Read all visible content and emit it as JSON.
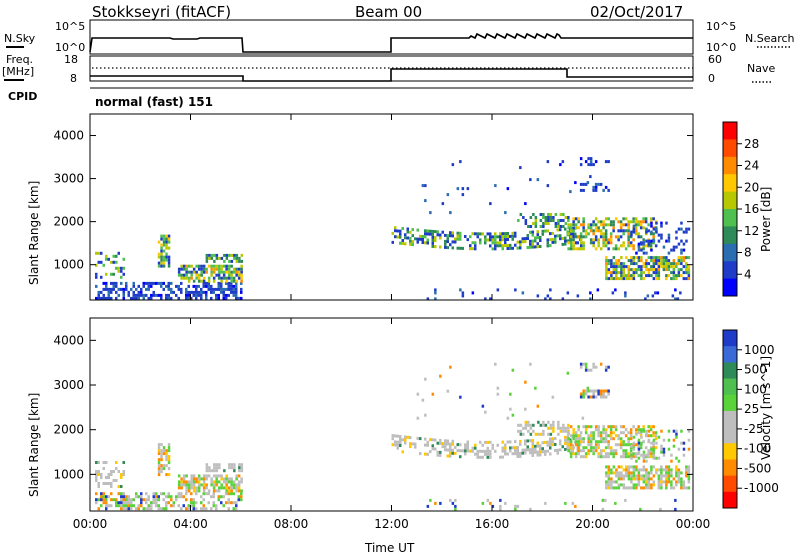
{
  "header": {
    "station": "Stokkseyri (fitACF)",
    "beam": "Beam 00",
    "date": "02/Oct/2017"
  },
  "panels": {
    "nsky_label": "N.Sky",
    "nsearch_label": "N.Search",
    "nsky_ticks": [
      "10^5",
      "10^0"
    ],
    "nsearch_ticks": [
      "10^5",
      "10^0"
    ],
    "freq_label_1": "Freq.",
    "freq_label_2": "[MHz]",
    "freq_ticks": [
      "18",
      "8"
    ],
    "nave_ticks": [
      "60",
      "0"
    ],
    "nave_label": "Nave",
    "cpid_label": "CPID",
    "cpid_text": "normal (fast) 151"
  },
  "chart_data": [
    {
      "type": "heatmap",
      "name": "power-plot",
      "ylabel": "Slant Range [km]",
      "yticks": [
        "4000",
        "3000",
        "2000",
        "1000"
      ],
      "ytick_values": [
        4000,
        3000,
        2000,
        1000
      ],
      "ylim": [
        180,
        4500
      ],
      "xlim": [
        0,
        24
      ],
      "colorbar_label": "Power [dB]",
      "colorbar_ticks": [
        "28",
        "24",
        "20",
        "16",
        "12",
        "8",
        "4"
      ],
      "colorbar_colors": [
        "#ff0000",
        "#ff4a00",
        "#ff8c00",
        "#ffc800",
        "#b8c800",
        "#4fbf4f",
        "#2e8b57",
        "#2a6db0",
        "#1e3cc8",
        "#0000ff"
      ]
    },
    {
      "type": "heatmap",
      "name": "velocity-plot",
      "ylabel": "Slant Range [km]",
      "yticks": [
        "4000",
        "3000",
        "2000",
        "1000"
      ],
      "ytick_values": [
        4000,
        3000,
        2000,
        1000
      ],
      "ylim": [
        180,
        4500
      ],
      "xlim": [
        0,
        24
      ],
      "colorbar_label": "Velocity [m s^-1]",
      "colorbar_ticks": [
        "1000",
        "500",
        "100",
        "25",
        "-25",
        "-100",
        "-500",
        "-1000"
      ],
      "colorbar_colors": [
        "#1e3cc8",
        "#3a6ad8",
        "#2e8b57",
        "#4fbf4f",
        "#5ad23a",
        "#bebebe",
        "#bebebe",
        "#ffc800",
        "#ff8c00",
        "#ff4a00",
        "#ff0000"
      ]
    }
  ],
  "xaxis": {
    "label": "Time UT",
    "ticks": [
      "00:00",
      "04:00",
      "08:00",
      "12:00",
      "16:00",
      "20:00",
      "00:00"
    ],
    "tick_values": [
      0,
      4,
      8,
      12,
      16,
      20,
      24
    ]
  }
}
